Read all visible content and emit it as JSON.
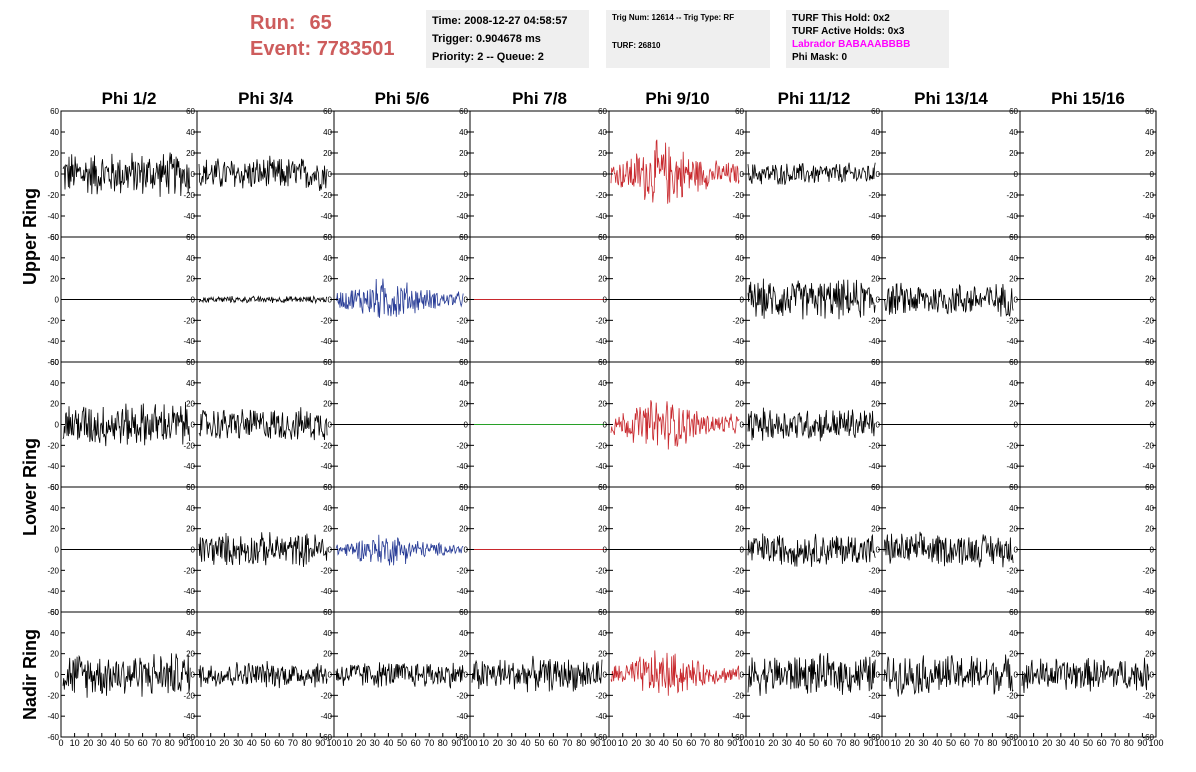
{
  "run": {
    "label": "Run:",
    "value": "65"
  },
  "event": {
    "label": "Event:",
    "value": "7783501"
  },
  "info_panel": {
    "time": "Time: 2008-12-27 04:58:57",
    "trigger": "Trigger: 0.904678 ms",
    "priority": "Priority: 2 -- Queue: 2"
  },
  "trig_panel": {
    "trig": "Trig Num: 12614 -- Trig Type: RF",
    "turf": "TURF: 26810"
  },
  "turf_panel": {
    "this_hold": "TURF This Hold: 0x2",
    "active_holds": "TURF Active Holds: 0x3",
    "labrador": "Labrador BABAAABBBB",
    "phi_mask": "Phi Mask: 0"
  },
  "colors": {
    "run_text": "#cd5c5c",
    "highlight": "#c8282d",
    "blue": "#283c96",
    "green": "#28a028",
    "magenta": "#ff00ff",
    "panel_bg": "#efefef"
  },
  "chart_data": {
    "type": "line",
    "columns": [
      "Phi 1/2",
      "Phi 3/4",
      "Phi 5/6",
      "Phi 7/8",
      "Phi 9/10",
      "Phi 11/12",
      "Phi 13/14",
      "Phi 15/16"
    ],
    "ring_labels": [
      "Upper Ring",
      "Lower Ring",
      "Nadir Ring"
    ],
    "ylim": [
      -60,
      60
    ],
    "xlim": [
      0,
      100
    ],
    "y_ticks": [
      "60",
      "40",
      "20",
      "0",
      "-20",
      "-40",
      "-60"
    ],
    "x_ticks": [
      "0",
      "10",
      "20",
      "30",
      "40",
      "50",
      "60",
      "70",
      "80",
      "90",
      "100"
    ],
    "rows": [
      {
        "ring": "Upper Ring",
        "amplitudes": [
          20,
          15,
          0,
          0,
          30,
          10,
          0,
          0
        ],
        "colors": [
          "black",
          "black",
          "black",
          "black",
          "red",
          "black",
          "black",
          "black"
        ]
      },
      {
        "ring": "Upper Ring",
        "amplitudes": [
          0,
          3,
          20,
          0,
          0,
          18,
          15,
          0
        ],
        "colors": [
          "black",
          "black",
          "blue",
          "red",
          "black",
          "black",
          "black",
          "black"
        ]
      },
      {
        "ring": "Lower Ring",
        "amplitudes": [
          20,
          15,
          0,
          0,
          25,
          15,
          0,
          0
        ],
        "colors": [
          "black",
          "black",
          "black",
          "green",
          "red",
          "black",
          "black",
          "black"
        ]
      },
      {
        "ring": "Lower Ring",
        "amplitudes": [
          0,
          15,
          15,
          0,
          0,
          15,
          15,
          0
        ],
        "colors": [
          "black",
          "black",
          "blue",
          "red",
          "black",
          "black",
          "black",
          "black"
        ]
      },
      {
        "ring": "Nadir Ring",
        "amplitudes": [
          20,
          12,
          12,
          15,
          22,
          18,
          18,
          15
        ],
        "colors": [
          "black",
          "black",
          "black",
          "black",
          "red",
          "black",
          "black",
          "black"
        ]
      }
    ]
  }
}
